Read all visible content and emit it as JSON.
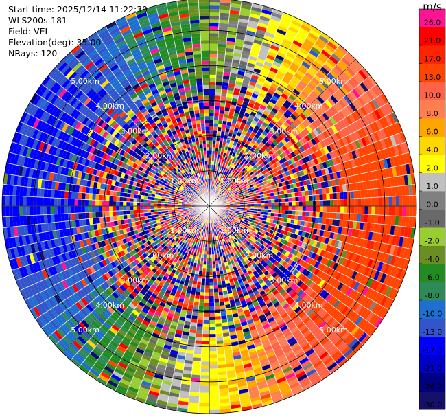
{
  "header": {
    "start_time": "Start time: 2025/12/14 11:22:39",
    "instrument": "WLS200s-181",
    "field": "Field: VEL",
    "elevation": "Elevation(deg): 35.00",
    "nrays": "NRays: 120"
  },
  "chart_data": {
    "type": "polar-ppi",
    "field": "VEL",
    "units": "m/s",
    "n_rays": 120,
    "max_range_km": 5.9,
    "range_rings_km": [
      1,
      2,
      3,
      4,
      5
    ],
    "ring_labels": [
      "1.00km",
      "2.00km",
      "3.00km",
      "4.00km",
      "5.00km"
    ],
    "colorbar": {
      "unit_label": "m/s",
      "boundaries": [
        -30.0,
        -26.0,
        -21.0,
        -17.0,
        -13.0,
        -10.0,
        -8.0,
        -6.0,
        -4.0,
        -2.0,
        -1.0,
        0.0,
        1.0,
        2.0,
        4.0,
        6.0,
        8.0,
        10.0,
        13.0,
        17.0,
        21.0,
        26.0,
        30.0
      ],
      "tick_labels": [
        "-30.0",
        "-26.0",
        "-21.0",
        "-17.0",
        "-13.0",
        "-10.0",
        "-8.0",
        "-6.0",
        "-4.0",
        "-2.0",
        "-1.0",
        "0.0",
        "1.0",
        "2.0",
        "4.0",
        "6.0",
        "8.0",
        "10.0",
        "13.0",
        "17.0",
        "21.0",
        "26.0"
      ],
      "colors": [
        "#15116a",
        "#000080",
        "#0000cd",
        "#0000ff",
        "#3355cc",
        "#1e6fd0",
        "#2e8b57",
        "#228b22",
        "#6b8e23",
        "#9acd32",
        "#696969",
        "#808080",
        "#c0c0c0",
        "#ffff00",
        "#ffd700",
        "#ffa500",
        "#ff7f50",
        "#ff6347",
        "#ff4500",
        "#ff2400",
        "#ff0000",
        "#ff1493"
      ]
    },
    "wind_pattern": {
      "description_units": "azimuth in degrees clockwise from north",
      "receding_max_azimuth_deg": 100,
      "receding_max_value": 16,
      "approaching_max_value": -14,
      "clean_start_km": 3.0,
      "noise_fraction_near": 0.95,
      "noise_fraction_far": 0.12
    }
  }
}
